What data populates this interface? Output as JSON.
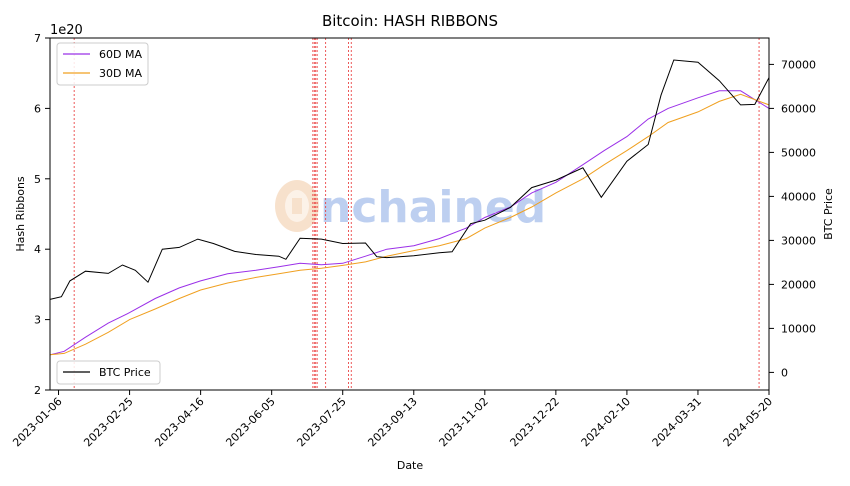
{
  "chart_data": {
    "type": "line",
    "title": "Bitcoin: HASH RIBBONS",
    "xlabel": "Date",
    "ylabel": "Hash Ribbons",
    "y2label": "BTC Price",
    "y_offset_label": "1e20",
    "watermark": "nchained",
    "x_ticks": [
      "2023-01-06",
      "2023-02-25",
      "2023-04-16",
      "2023-06-05",
      "2023-07-25",
      "2023-09-13",
      "2023-11-02",
      "2023-12-22",
      "2024-02-10",
      "2024-03-31",
      "2024-05-20"
    ],
    "y_ticks": [
      2,
      3,
      4,
      5,
      6,
      7
    ],
    "y2_ticks": [
      0,
      10000,
      20000,
      30000,
      40000,
      50000,
      60000,
      70000
    ],
    "xlim": [
      "2022-12-31",
      "2024-05-20"
    ],
    "ylim": [
      2,
      7
    ],
    "y2lim": [
      -4000,
      76000
    ],
    "grid": false,
    "legend_upper": {
      "position": "top-left",
      "entries": [
        "60D MA",
        "30D MA"
      ]
    },
    "legend_lower": {
      "position": "bottom-left",
      "entries": [
        "BTC Price"
      ]
    },
    "colors": {
      "ma60": "#9b30e8",
      "ma30": "#f0a020",
      "price": "#000000",
      "signal": "#e83030"
    },
    "series": [
      {
        "name": "60D MA",
        "axis": "left",
        "x": [
          "2022-12-31",
          "2023-01-10",
          "2023-01-25",
          "2023-02-10",
          "2023-02-25",
          "2023-03-15",
          "2023-04-01",
          "2023-04-16",
          "2023-05-05",
          "2023-05-25",
          "2023-06-10",
          "2023-06-25",
          "2023-07-10",
          "2023-07-25",
          "2023-08-10",
          "2023-08-25",
          "2023-09-13",
          "2023-10-01",
          "2023-10-20",
          "2023-11-02",
          "2023-11-20",
          "2023-12-05",
          "2023-12-22",
          "2024-01-10",
          "2024-01-25",
          "2024-02-10",
          "2024-02-25",
          "2024-03-10",
          "2024-03-31",
          "2024-04-15",
          "2024-04-30",
          "2024-05-20"
        ],
        "values": [
          2.5,
          2.55,
          2.75,
          2.95,
          3.1,
          3.3,
          3.45,
          3.55,
          3.65,
          3.7,
          3.75,
          3.8,
          3.78,
          3.8,
          3.9,
          4.0,
          4.05,
          4.15,
          4.3,
          4.45,
          4.6,
          4.8,
          4.95,
          5.2,
          5.4,
          5.6,
          5.85,
          6.0,
          6.15,
          6.25,
          6.25,
          6.0
        ]
      },
      {
        "name": "30D MA",
        "axis": "left",
        "x": [
          "2022-12-31",
          "2023-01-10",
          "2023-01-25",
          "2023-02-10",
          "2023-02-25",
          "2023-03-15",
          "2023-04-01",
          "2023-04-16",
          "2023-05-05",
          "2023-05-25",
          "2023-06-10",
          "2023-06-25",
          "2023-07-10",
          "2023-07-25",
          "2023-08-10",
          "2023-08-25",
          "2023-09-13",
          "2023-10-01",
          "2023-10-20",
          "2023-11-02",
          "2023-11-20",
          "2023-12-05",
          "2023-12-22",
          "2024-01-10",
          "2024-01-25",
          "2024-02-10",
          "2024-02-25",
          "2024-03-10",
          "2024-03-31",
          "2024-04-15",
          "2024-04-30",
          "2024-05-20"
        ],
        "values": [
          2.5,
          2.52,
          2.65,
          2.82,
          3.0,
          3.15,
          3.3,
          3.42,
          3.52,
          3.6,
          3.65,
          3.7,
          3.73,
          3.77,
          3.82,
          3.9,
          3.98,
          4.05,
          4.15,
          4.3,
          4.45,
          4.6,
          4.8,
          5.0,
          5.2,
          5.4,
          5.6,
          5.8,
          5.95,
          6.1,
          6.2,
          6.05
        ]
      },
      {
        "name": "BTC Price",
        "axis": "right",
        "x": [
          "2022-12-31",
          "2023-01-08",
          "2023-01-14",
          "2023-01-25",
          "2023-02-10",
          "2023-02-20",
          "2023-03-01",
          "2023-03-10",
          "2023-03-20",
          "2023-04-01",
          "2023-04-14",
          "2023-04-25",
          "2023-05-10",
          "2023-05-25",
          "2023-06-10",
          "2023-06-15",
          "2023-06-25",
          "2023-07-10",
          "2023-07-25",
          "2023-08-10",
          "2023-08-18",
          "2023-08-25",
          "2023-09-13",
          "2023-10-01",
          "2023-10-10",
          "2023-10-23",
          "2023-11-02",
          "2023-11-20",
          "2023-12-05",
          "2023-12-22",
          "2024-01-10",
          "2024-01-23",
          "2024-02-10",
          "2024-02-25",
          "2024-03-05",
          "2024-03-14",
          "2024-03-31",
          "2024-04-15",
          "2024-04-30",
          "2024-05-10",
          "2024-05-20"
        ],
        "values": [
          16600,
          17200,
          20800,
          23000,
          22500,
          24400,
          23200,
          20500,
          28000,
          28400,
          30300,
          29300,
          27500,
          26800,
          26400,
          25700,
          30500,
          30300,
          29300,
          29400,
          26300,
          26100,
          26500,
          27200,
          27400,
          33800,
          34600,
          37500,
          42000,
          43700,
          46500,
          39800,
          48000,
          51800,
          63000,
          71000,
          70500,
          66300,
          60800,
          60900,
          67000
        ]
      }
    ],
    "signal_dates": [
      "2023-01-17",
      "2023-07-04",
      "2023-07-05",
      "2023-07-06",
      "2023-07-07",
      "2023-07-13",
      "2023-07-29",
      "2023-07-31",
      "2024-05-13"
    ]
  }
}
